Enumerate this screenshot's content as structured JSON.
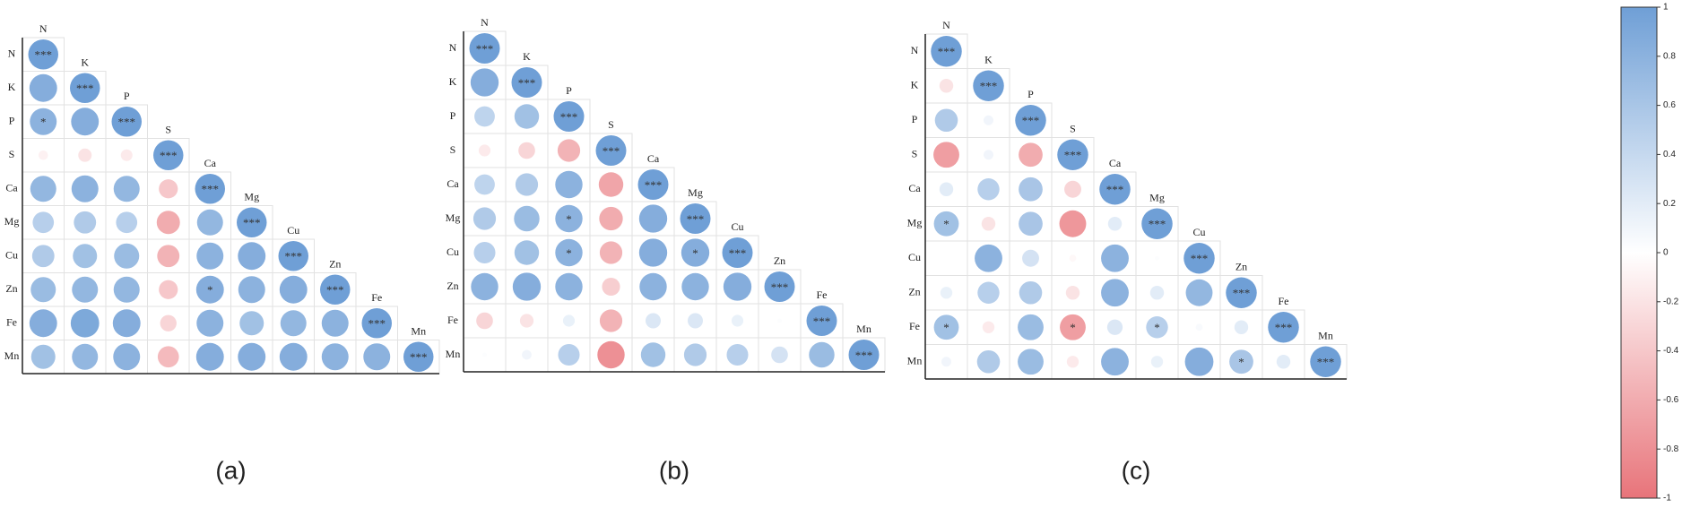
{
  "chart_data": [
    {
      "type": "correlation",
      "subtitle": "(a)",
      "variables": [
        "N",
        "K",
        "P",
        "S",
        "Ca",
        "Mg",
        "Cu",
        "Zn",
        "Fe",
        "Mn"
      ],
      "matrix": [
        [
          1
        ],
        [
          0.85,
          1
        ],
        [
          0.8,
          0.85,
          1
        ],
        [
          -0.1,
          -0.2,
          -0.15,
          1
        ],
        [
          0.75,
          0.8,
          0.75,
          -0.4,
          1
        ],
        [
          0.5,
          0.55,
          0.5,
          -0.6,
          0.75,
          1
        ],
        [
          0.55,
          0.65,
          0.7,
          -0.55,
          0.8,
          0.85,
          1
        ],
        [
          0.7,
          0.75,
          0.75,
          -0.4,
          0.85,
          0.8,
          0.85,
          1
        ],
        [
          0.85,
          0.9,
          0.85,
          -0.3,
          0.8,
          0.65,
          0.75,
          0.8,
          1
        ],
        [
          0.65,
          0.75,
          0.8,
          -0.5,
          0.85,
          0.85,
          0.85,
          0.8,
          0.8,
          1
        ]
      ],
      "significance": [
        [
          "***"
        ],
        [
          null,
          "***"
        ],
        [
          "*",
          null,
          "***"
        ],
        [
          null,
          null,
          null,
          "***"
        ],
        [
          null,
          null,
          null,
          null,
          "***"
        ],
        [
          null,
          null,
          null,
          null,
          null,
          "***"
        ],
        [
          null,
          null,
          null,
          null,
          null,
          null,
          "***"
        ],
        [
          null,
          null,
          null,
          null,
          "*",
          null,
          null,
          "***"
        ],
        [
          null,
          null,
          null,
          null,
          null,
          null,
          null,
          null,
          "***"
        ],
        [
          null,
          null,
          null,
          null,
          null,
          null,
          null,
          null,
          null,
          "***"
        ]
      ]
    },
    {
      "type": "correlation",
      "subtitle": "(b)",
      "variables": [
        "N",
        "K",
        "P",
        "S",
        "Ca",
        "Mg",
        "Cu",
        "Zn",
        "Fe",
        "Mn"
      ],
      "matrix": [
        [
          1
        ],
        [
          0.85,
          1
        ],
        [
          0.45,
          0.65,
          1
        ],
        [
          -0.15,
          -0.3,
          -0.55,
          1
        ],
        [
          0.45,
          0.55,
          0.8,
          -0.65,
          1
        ],
        [
          0.55,
          0.7,
          0.8,
          -0.6,
          0.85,
          1
        ],
        [
          0.5,
          0.65,
          0.8,
          -0.55,
          0.85,
          0.85,
          1
        ],
        [
          0.8,
          0.85,
          0.8,
          -0.35,
          0.8,
          0.8,
          0.85,
          1
        ],
        [
          -0.3,
          -0.2,
          0.15,
          -0.55,
          0.25,
          0.25,
          0.15,
          0.02,
          1
        ],
        [
          0.02,
          0.1,
          0.5,
          -0.8,
          0.65,
          0.55,
          0.5,
          0.3,
          0.7,
          1
        ]
      ],
      "significance": [
        [
          "***"
        ],
        [
          null,
          "***"
        ],
        [
          null,
          null,
          "***"
        ],
        [
          null,
          null,
          null,
          "***"
        ],
        [
          null,
          null,
          null,
          null,
          "***"
        ],
        [
          null,
          null,
          "*",
          null,
          null,
          "***"
        ],
        [
          null,
          null,
          "*",
          null,
          null,
          "*",
          "***"
        ],
        [
          null,
          null,
          null,
          null,
          null,
          null,
          null,
          "***"
        ],
        [
          null,
          null,
          null,
          null,
          null,
          null,
          null,
          null,
          "***"
        ],
        [
          null,
          null,
          null,
          null,
          null,
          null,
          null,
          null,
          null,
          "***"
        ]
      ]
    },
    {
      "type": "correlation",
      "subtitle": "(c)",
      "variables": [
        "N",
        "K",
        "P",
        "S",
        "Ca",
        "Mg",
        "Cu",
        "Zn",
        "Fe",
        "Mn"
      ],
      "matrix": [
        [
          1
        ],
        [
          -0.2,
          1
        ],
        [
          0.55,
          0.1,
          1
        ],
        [
          -0.7,
          0.1,
          -0.6,
          1
        ],
        [
          0.2,
          0.5,
          0.6,
          -0.3,
          1
        ],
        [
          0.65,
          -0.2,
          0.6,
          -0.75,
          0.2,
          1
        ],
        [
          0.0,
          0.8,
          0.3,
          -0.05,
          0.8,
          0.02,
          1
        ],
        [
          0.15,
          0.5,
          0.55,
          -0.2,
          0.8,
          0.2,
          0.75,
          1
        ],
        [
          0.65,
          -0.15,
          0.7,
          -0.7,
          0.25,
          0.5,
          0.05,
          0.2,
          1
        ],
        [
          0.1,
          0.55,
          0.7,
          -0.15,
          0.8,
          0.15,
          0.85,
          0.6,
          0.2,
          1
        ]
      ],
      "significance": [
        [
          "***"
        ],
        [
          null,
          "***"
        ],
        [
          null,
          null,
          "***"
        ],
        [
          null,
          null,
          null,
          "***"
        ],
        [
          null,
          null,
          null,
          null,
          "***"
        ],
        [
          "*",
          null,
          null,
          null,
          null,
          "***"
        ],
        [
          null,
          null,
          null,
          null,
          null,
          null,
          "***"
        ],
        [
          null,
          null,
          null,
          null,
          null,
          null,
          null,
          "***"
        ],
        [
          "*",
          null,
          null,
          "*",
          null,
          "*",
          null,
          null,
          "***"
        ],
        [
          null,
          null,
          null,
          null,
          null,
          null,
          null,
          "*",
          null,
          "***"
        ]
      ]
    }
  ],
  "colorbar": {
    "lim": [
      -1,
      1
    ],
    "ticks": [
      1,
      0.8,
      0.6,
      0.4,
      0.2,
      0,
      -0.2,
      -0.4,
      -0.6,
      -0.8,
      -1
    ],
    "colors": [
      "#e8747a",
      "#ffffff",
      "#6f9fd6"
    ]
  }
}
